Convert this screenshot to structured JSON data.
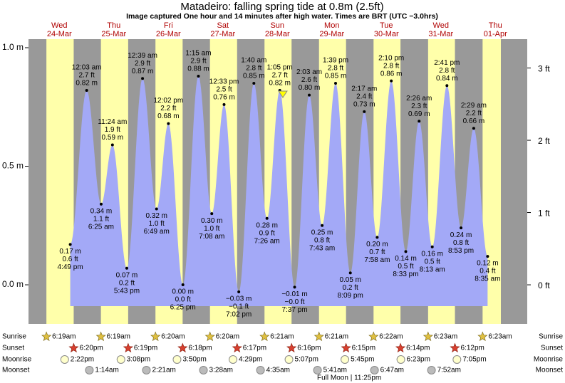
{
  "chart_data": {
    "type": "tide",
    "title": "Matadeiro: falling  spring tide at 0.8m (2.5ft)",
    "subtitle": "Image captured One hour and 14 minutes after high water. Times are BRT (UTC −3.0hrs)",
    "ylim": [
      -0.165,
      1.036
    ],
    "yticks": [
      {
        "value": 1,
        "label": "1.0 m"
      },
      {
        "value": 0.5,
        "label": "0.5 m"
      },
      {
        "value": 0,
        "label": "0.0 m"
      }
    ],
    "y2lim": [
      -0.541,
      3.399
    ],
    "y2ticks": [
      {
        "value": 3,
        "label": "3 ft"
      },
      {
        "value": 2,
        "label": "2 ft"
      },
      {
        "value": 1,
        "label": "1 ft"
      },
      {
        "value": 0,
        "label": "0 ft"
      }
    ],
    "row_labels": [
      "Sunrise",
      "Sunset",
      "Moonrise",
      "Moonset"
    ],
    "colors": {
      "water": "#a3a9f7",
      "day": "#ffffaa",
      "night": "#999999",
      "weekday": "#b00000"
    },
    "days": [
      {
        "weekday": "Wed",
        "date": "24-Mar",
        "sunrise": "6:19am",
        "sunset": "6:20pm",
        "moonrise": "2:22pm",
        "tides": [
          {
            "time": "4:49 pm",
            "value": 0.17,
            "value_label": "0.17 m",
            "ft_label": "0.6 ft"
          }
        ]
      },
      {
        "weekday": "Thu",
        "date": "25-Mar",
        "sunrise": "6:19am",
        "sunset": "6:19pm",
        "moonrise": "3:08pm",
        "moonset": "1:14am",
        "tides": [
          {
            "time": "12:03 am",
            "value": 0.82,
            "value_label": "0.82 m",
            "ft_label": "2.7 ft"
          },
          {
            "time": "6:25 am",
            "value": 0.34,
            "value_label": "0.34 m",
            "ft_label": "1.1 ft"
          },
          {
            "time": "11:24 am",
            "value": 0.59,
            "value_label": "0.59 m",
            "ft_label": "1.9 ft"
          },
          {
            "time": "5:43 pm",
            "value": 0.07,
            "value_label": "0.07 m",
            "ft_label": "0.2 ft"
          }
        ]
      },
      {
        "weekday": "Fri",
        "date": "26-Mar",
        "sunrise": "6:20am",
        "sunset": "6:18pm",
        "moonrise": "3:50pm",
        "moonset": "2:21am",
        "tides": [
          {
            "time": "12:39 am",
            "value": 0.87,
            "value_label": "0.87 m",
            "ft_label": "2.9 ft"
          },
          {
            "time": "6:49 am",
            "value": 0.32,
            "value_label": "0.32 m",
            "ft_label": "1.0 ft"
          },
          {
            "time": "12:02 pm",
            "value": 0.68,
            "value_label": "0.68 m",
            "ft_label": "2.2 ft"
          },
          {
            "time": "6:25 pm",
            "value": 0.0,
            "value_label": "0.00 m",
            "ft_label": "0.0 ft"
          }
        ]
      },
      {
        "weekday": "Sat",
        "date": "27-Mar",
        "sunrise": "6:20am",
        "sunset": "6:17pm",
        "moonrise": "4:29pm",
        "moonset": "3:28am",
        "tides": [
          {
            "time": "1:15 am",
            "value": 0.88,
            "value_label": "0.88 m",
            "ft_label": "2.9 ft"
          },
          {
            "time": "7:08 am",
            "value": 0.3,
            "value_label": "0.30 m",
            "ft_label": "1.0 ft"
          },
          {
            "time": "12:33 pm",
            "value": 0.76,
            "value_label": "0.76 m",
            "ft_label": "2.5 ft"
          },
          {
            "time": "7:02 pm",
            "value": -0.03,
            "value_label": "−0.03 m",
            "ft_label": "−0.1 ft"
          }
        ]
      },
      {
        "weekday": "Sun",
        "date": "28-Mar",
        "sunrise": "6:21am",
        "sunset": "6:16pm",
        "moonrise": "5:07pm",
        "moonset": "4:35am",
        "tides": [
          {
            "time": "1:40 am",
            "value": 0.85,
            "value_label": "0.85 m",
            "ft_label": "2.8 ft"
          },
          {
            "time": "7:26 am",
            "value": 0.28,
            "value_label": "0.28 m",
            "ft_label": "0.9 ft"
          },
          {
            "time": "1:05 pm",
            "value": 0.82,
            "value_label": "0.82 m",
            "ft_label": "2.7 ft"
          },
          {
            "time": "7:37 pm",
            "value": -0.01,
            "value_label": "−0.01 m",
            "ft_label": "−0.0 ft"
          }
        ]
      },
      {
        "weekday": "Mon",
        "date": "29-Mar",
        "sunrise": "6:21am",
        "sunset": "6:15pm",
        "moonrise": "5:45pm",
        "moonset": "5:41am",
        "moon_phase": "Full Moon | 11:25pm",
        "tides": [
          {
            "time": "2:03 am",
            "value": 0.8,
            "value_label": "0.80 m",
            "ft_label": "2.6 ft"
          },
          {
            "time": "7:43 am",
            "value": 0.25,
            "value_label": "0.25 m",
            "ft_label": "0.8 ft"
          },
          {
            "time": "1:39 pm",
            "value": 0.85,
            "value_label": "0.85 m",
            "ft_label": "2.8 ft"
          },
          {
            "time": "8:09 pm",
            "value": 0.05,
            "value_label": "0.05 m",
            "ft_label": "0.2 ft"
          }
        ]
      },
      {
        "weekday": "Tue",
        "date": "30-Mar",
        "sunrise": "6:22am",
        "sunset": "6:14pm",
        "moonrise": "6:23pm",
        "moonset": "6:47am",
        "tides": [
          {
            "time": "2:17 am",
            "value": 0.73,
            "value_label": "0.73 m",
            "ft_label": "2.4 ft"
          },
          {
            "time": "7:58 am",
            "value": 0.2,
            "value_label": "0.20 m",
            "ft_label": "0.7 ft"
          },
          {
            "time": "2:10 pm",
            "value": 0.86,
            "value_label": "0.86 m",
            "ft_label": "2.8 ft"
          },
          {
            "time": "8:33 pm",
            "value": 0.14,
            "value_label": "0.14 m",
            "ft_label": "0.5 ft"
          }
        ]
      },
      {
        "weekday": "Wed",
        "date": "31-Mar",
        "sunrise": "6:23am",
        "sunset": "6:12pm",
        "moonrise": "7:05pm",
        "moonset": "7:52am",
        "tides": [
          {
            "time": "2:26 am",
            "value": 0.69,
            "value_label": "0.69 m",
            "ft_label": "2.3 ft"
          },
          {
            "time": "8:13 am",
            "value": 0.16,
            "value_label": "0.16 m",
            "ft_label": "0.5 ft"
          },
          {
            "time": "2:41 pm",
            "value": 0.84,
            "value_label": "0.84 m",
            "ft_label": "2.8 ft"
          },
          {
            "time": "8:53 pm",
            "value": 0.24,
            "value_label": "0.24 m",
            "ft_label": "0.8 ft"
          }
        ]
      },
      {
        "weekday": "Thu",
        "date": "01-Apr",
        "sunrise": "6:23am",
        "tides": [
          {
            "time": "2:29 am",
            "value": 0.66,
            "value_label": "0.66 m",
            "ft_label": "2.2 ft"
          },
          {
            "time": "8:35 am",
            "value": 0.12,
            "value_label": "0.12 m",
            "ft_label": "0.4 ft"
          }
        ]
      }
    ]
  }
}
